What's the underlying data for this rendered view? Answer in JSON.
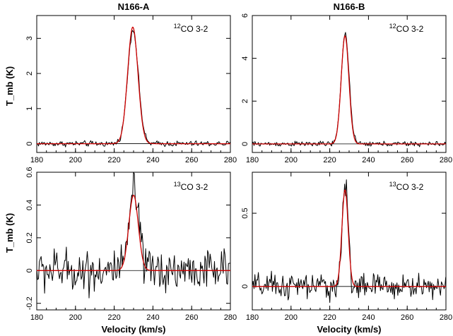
{
  "figure": {
    "columns": [
      "N166-A",
      "N166-B"
    ],
    "xlabel": "Velocity (km/s)",
    "ylabel": "T_mb (K)"
  },
  "colors": {
    "observed": "#000000",
    "fit": "#cc0000"
  },
  "chart_data": [
    {
      "type": "line",
      "title": "N166-A",
      "annotation": {
        "isotope": "12",
        "text": "CO 3-2"
      },
      "xlabel": "",
      "ylabel": "T_mb (K)",
      "xlim": [
        180,
        280
      ],
      "ylim": [
        -0.25,
        3.65
      ],
      "xticks": [
        180,
        200,
        220,
        240,
        260,
        280
      ],
      "yticks": [
        0,
        1,
        2,
        3
      ],
      "grid": false,
      "series": [
        {
          "kind": "observed",
          "profile": {
            "center": 229.7,
            "peak": 3.25,
            "fwhm": 6.5,
            "noise_rms": 0.04
          }
        },
        {
          "kind": "gaussian_fit",
          "profile": {
            "center": 229.6,
            "peak": 3.32,
            "fwhm": 6.3
          }
        }
      ]
    },
    {
      "type": "line",
      "title": "N166-B",
      "annotation": {
        "isotope": "12",
        "text": "CO 3-2"
      },
      "xlabel": "",
      "ylabel": "",
      "xlim": [
        180,
        280
      ],
      "ylim": [
        -0.4,
        6.0
      ],
      "xticks": [
        180,
        200,
        220,
        240,
        260,
        280
      ],
      "yticks": [
        0,
        2,
        4,
        6
      ],
      "grid": false,
      "series": [
        {
          "kind": "observed",
          "profile": {
            "center": 228.0,
            "peak": 5.2,
            "fwhm": 4.8,
            "noise_rms": 0.06
          }
        },
        {
          "kind": "gaussian_fit",
          "profile": {
            "center": 227.9,
            "peak": 5.05,
            "fwhm": 4.7
          }
        }
      ]
    },
    {
      "type": "line",
      "title": "",
      "annotation": {
        "isotope": "13",
        "text": "CO 3-2"
      },
      "xlabel": "Velocity (km/s)",
      "ylabel": "T_mb (K)",
      "xlim": [
        180,
        280
      ],
      "ylim": [
        -0.24,
        0.6
      ],
      "xticks": [
        180,
        200,
        220,
        240,
        260,
        280
      ],
      "yticks": [
        -0.2,
        0,
        0.2,
        0.4,
        0.6
      ],
      "grid": false,
      "series": [
        {
          "kind": "observed",
          "profile": {
            "center": 230.2,
            "peak": 0.5,
            "fwhm": 5.5,
            "noise_rms": 0.065
          }
        },
        {
          "kind": "gaussian_fit",
          "profile": {
            "center": 230.0,
            "peak": 0.46,
            "fwhm": 5.8
          }
        }
      ]
    },
    {
      "type": "line",
      "title": "",
      "annotation": {
        "isotope": "13",
        "text": "CO 3-2"
      },
      "xlabel": "Velocity (km/s)",
      "ylabel": "",
      "xlim": [
        180,
        280
      ],
      "ylim": [
        -0.16,
        0.78
      ],
      "xticks": [
        180,
        200,
        220,
        240,
        260,
        280
      ],
      "yticks": [
        0,
        0.5
      ],
      "grid": false,
      "series": [
        {
          "kind": "observed",
          "profile": {
            "center": 228.0,
            "peak": 0.7,
            "fwhm": 3.6,
            "noise_rms": 0.045
          }
        },
        {
          "kind": "gaussian_fit",
          "profile": {
            "center": 227.9,
            "peak": 0.66,
            "fwhm": 3.8
          }
        }
      ]
    }
  ]
}
